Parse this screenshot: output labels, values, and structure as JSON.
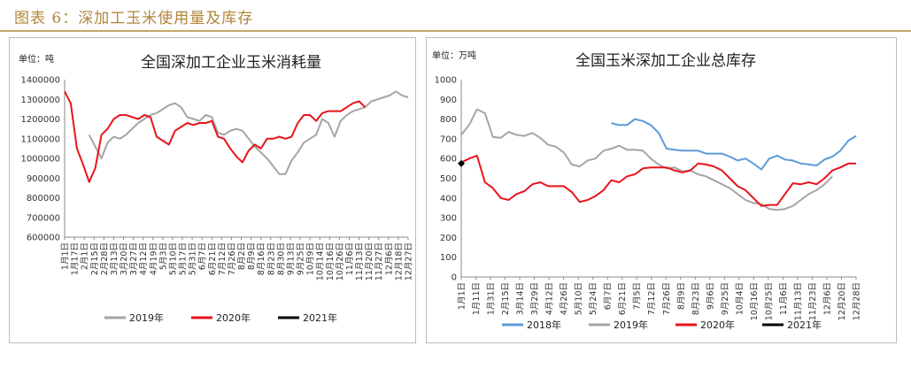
{
  "figure_title": "图表 6：深加工玉米使用量及库存",
  "colors": {
    "s2018": "#5b9bd5",
    "s2019": "#a5a5a5",
    "s2020": "#e8141b",
    "s2021": "#000000",
    "title_gold": "#b0863a"
  },
  "chart_data": [
    {
      "type": "line",
      "title": "全国深加工企业玉米消耗量",
      "unit_label": "单位：吨",
      "ylim": [
        600000,
        1400000
      ],
      "yticks": [
        "600000",
        "700000",
        "800000",
        "900000",
        "1000000",
        "1100000",
        "1200000",
        "1300000",
        "1400000"
      ],
      "xticks": [
        "1月1日",
        "1月17日",
        "2月1日",
        "2月15日",
        "2月28日",
        "3月13日",
        "3月20日",
        "3月27日",
        "4月12日",
        "4月19日",
        "5月3日",
        "5月10日",
        "5月17日",
        "5月31日",
        "6月7日",
        "6月21日",
        "7月12日",
        "7月26日",
        "8月2日",
        "8月9日",
        "8月16日",
        "8月23日",
        "8月30日",
        "9月13日",
        "9月25日",
        "10月9日",
        "10月14日",
        "10月16日",
        "10月26日",
        "11月6日",
        "11月13日",
        "11月20日",
        "11月27日",
        "12月6日",
        "12月18日",
        "12月27日"
      ],
      "legend": [
        "2019年",
        "2020年",
        "2021年"
      ],
      "series": [
        {
          "name": "2019年",
          "color_key": "s2019",
          "points": [
            [
              4,
              1120000
            ],
            [
              5,
              1060000
            ],
            [
              6,
              1000000
            ],
            [
              7,
              1080000
            ],
            [
              8,
              1110000
            ],
            [
              9,
              1100000
            ],
            [
              10,
              1120000
            ],
            [
              11,
              1150000
            ],
            [
              12,
              1180000
            ],
            [
              13,
              1200000
            ],
            [
              14,
              1220000
            ],
            [
              15,
              1230000
            ],
            [
              16,
              1250000
            ],
            [
              17,
              1270000
            ],
            [
              18,
              1280000
            ],
            [
              19,
              1260000
            ],
            [
              20,
              1210000
            ],
            [
              21,
              1200000
            ],
            [
              22,
              1190000
            ],
            [
              23,
              1220000
            ],
            [
              24,
              1210000
            ],
            [
              25,
              1130000
            ],
            [
              26,
              1120000
            ],
            [
              27,
              1140000
            ],
            [
              28,
              1150000
            ],
            [
              29,
              1140000
            ],
            [
              30,
              1100000
            ],
            [
              31,
              1060000
            ],
            [
              32,
              1030000
            ],
            [
              33,
              1000000
            ],
            [
              34,
              960000
            ],
            [
              35,
              920000
            ],
            [
              36,
              920000
            ],
            [
              37,
              990000
            ],
            [
              38,
              1030000
            ],
            [
              39,
              1080000
            ],
            [
              40,
              1100000
            ],
            [
              41,
              1120000
            ],
            [
              42,
              1200000
            ],
            [
              43,
              1180000
            ],
            [
              44,
              1110000
            ],
            [
              45,
              1190000
            ],
            [
              46,
              1220000
            ],
            [
              47,
              1240000
            ],
            [
              48,
              1250000
            ],
            [
              49,
              1260000
            ],
            [
              50,
              1290000
            ],
            [
              51,
              1300000
            ],
            [
              52,
              1310000
            ],
            [
              53,
              1320000
            ],
            [
              54,
              1340000
            ],
            [
              55,
              1320000
            ],
            [
              56,
              1310000
            ]
          ]
        },
        {
          "name": "2020年",
          "color_key": "s2020",
          "points": [
            [
              0,
              1340000
            ],
            [
              1,
              1280000
            ],
            [
              2,
              1050000
            ],
            [
              3,
              970000
            ],
            [
              4,
              880000
            ],
            [
              5,
              950000
            ],
            [
              6,
              1120000
            ],
            [
              7,
              1150000
            ],
            [
              8,
              1200000
            ],
            [
              9,
              1220000
            ],
            [
              10,
              1220000
            ],
            [
              11,
              1210000
            ],
            [
              12,
              1200000
            ],
            [
              13,
              1220000
            ],
            [
              14,
              1210000
            ],
            [
              15,
              1110000
            ],
            [
              16,
              1090000
            ],
            [
              17,
              1070000
            ],
            [
              18,
              1140000
            ],
            [
              19,
              1160000
            ],
            [
              20,
              1180000
            ],
            [
              21,
              1170000
            ],
            [
              22,
              1180000
            ],
            [
              23,
              1180000
            ],
            [
              24,
              1190000
            ],
            [
              25,
              1110000
            ],
            [
              26,
              1100000
            ],
            [
              27,
              1050000
            ],
            [
              28,
              1010000
            ],
            [
              29,
              980000
            ],
            [
              30,
              1040000
            ],
            [
              31,
              1070000
            ],
            [
              32,
              1050000
            ],
            [
              33,
              1100000
            ],
            [
              34,
              1100000
            ],
            [
              35,
              1110000
            ],
            [
              36,
              1100000
            ],
            [
              37,
              1110000
            ],
            [
              38,
              1180000
            ],
            [
              39,
              1220000
            ],
            [
              40,
              1220000
            ],
            [
              41,
              1190000
            ],
            [
              42,
              1230000
            ],
            [
              43,
              1240000
            ],
            [
              44,
              1240000
            ],
            [
              45,
              1240000
            ],
            [
              46,
              1260000
            ],
            [
              47,
              1280000
            ],
            [
              48,
              1290000
            ],
            [
              49,
              1260000
            ]
          ]
        },
        {
          "name": "2021年",
          "color_key": "s2021",
          "points": []
        }
      ]
    },
    {
      "type": "line",
      "title": "全国玉米深加工企业总库存",
      "unit_label": "单位：万吨",
      "ylim": [
        0,
        1000
      ],
      "yticks": [
        "0",
        "100",
        "200",
        "300",
        "400",
        "500",
        "600",
        "700",
        "800",
        "900",
        "1000"
      ],
      "xticks": [
        "1月1日",
        "1月11日",
        "1月31日",
        "2月15日",
        "3月14日",
        "3月29日",
        "4月12日",
        "4月26日",
        "5月10日",
        "5月24日",
        "6月7日",
        "6月21日",
        "7月5日",
        "7月12日",
        "7月26日",
        "8月9日",
        "8月23日",
        "9月6日",
        "9月25日",
        "10月4日",
        "10月16日",
        "10月25日",
        "11月6日",
        "11月13日",
        "11月23日",
        "12月6日",
        "12月20日",
        "12月28日"
      ],
      "legend": [
        "2018年",
        "2019年",
        "2020年",
        "2021年"
      ],
      "series": [
        {
          "name": "2018年",
          "color_key": "s2018",
          "points": [
            [
              19,
              780
            ],
            [
              20,
              770
            ],
            [
              21,
              770
            ],
            [
              22,
              800
            ],
            [
              23,
              790
            ],
            [
              24,
              770
            ],
            [
              25,
              730
            ],
            [
              26,
              650
            ],
            [
              27,
              645
            ],
            [
              28,
              640
            ],
            [
              29,
              640
            ],
            [
              30,
              640
            ],
            [
              31,
              625
            ],
            [
              32,
              625
            ],
            [
              33,
              625
            ],
            [
              34,
              610
            ],
            [
              35,
              590
            ],
            [
              36,
              600
            ],
            [
              37,
              575
            ],
            [
              38,
              545
            ],
            [
              39,
              600
            ],
            [
              40,
              615
            ],
            [
              41,
              595
            ],
            [
              42,
              590
            ],
            [
              43,
              575
            ],
            [
              44,
              570
            ],
            [
              45,
              565
            ],
            [
              46,
              595
            ],
            [
              47,
              610
            ],
            [
              48,
              640
            ],
            [
              49,
              690
            ],
            [
              50,
              715
            ]
          ]
        },
        {
          "name": "2019年",
          "color_key": "s2019",
          "points": [
            [
              0,
              720
            ],
            [
              1,
              770
            ],
            [
              2,
              850
            ],
            [
              3,
              830
            ],
            [
              4,
              710
            ],
            [
              5,
              705
            ],
            [
              6,
              735
            ],
            [
              7,
              720
            ],
            [
              8,
              715
            ],
            [
              9,
              730
            ],
            [
              10,
              705
            ],
            [
              11,
              670
            ],
            [
              12,
              660
            ],
            [
              13,
              630
            ],
            [
              14,
              570
            ],
            [
              15,
              560
            ],
            [
              16,
              590
            ],
            [
              17,
              600
            ],
            [
              18,
              640
            ],
            [
              19,
              650
            ],
            [
              20,
              665
            ],
            [
              21,
              645
            ],
            [
              22,
              645
            ],
            [
              23,
              640
            ],
            [
              24,
              600
            ],
            [
              25,
              570
            ],
            [
              26,
              550
            ],
            [
              27,
              555
            ],
            [
              28,
              535
            ],
            [
              29,
              540
            ],
            [
              30,
              520
            ],
            [
              31,
              510
            ],
            [
              32,
              490
            ],
            [
              33,
              470
            ],
            [
              34,
              450
            ],
            [
              35,
              420
            ],
            [
              36,
              390
            ],
            [
              37,
              375
            ],
            [
              38,
              370
            ],
            [
              39,
              345
            ],
            [
              40,
              340
            ],
            [
              41,
              345
            ],
            [
              42,
              360
            ],
            [
              43,
              390
            ],
            [
              44,
              420
            ],
            [
              45,
              440
            ],
            [
              46,
              470
            ],
            [
              47,
              510
            ]
          ]
        },
        {
          "name": "2020年",
          "color_key": "s2020",
          "points": [
            [
              0,
              580
            ],
            [
              1,
              600
            ],
            [
              2,
              615
            ],
            [
              3,
              480
            ],
            [
              4,
              450
            ],
            [
              5,
              400
            ],
            [
              6,
              390
            ],
            [
              7,
              420
            ],
            [
              8,
              435
            ],
            [
              9,
              470
            ],
            [
              10,
              480
            ],
            [
              11,
              460
            ],
            [
              12,
              460
            ],
            [
              13,
              460
            ],
            [
              14,
              430
            ],
            [
              15,
              380
            ],
            [
              16,
              390
            ],
            [
              17,
              410
            ],
            [
              18,
              440
            ],
            [
              19,
              490
            ],
            [
              20,
              480
            ],
            [
              21,
              510
            ],
            [
              22,
              520
            ],
            [
              23,
              550
            ],
            [
              24,
              555
            ],
            [
              25,
              555
            ],
            [
              26,
              555
            ],
            [
              27,
              540
            ],
            [
              28,
              530
            ],
            [
              29,
              540
            ],
            [
              30,
              575
            ],
            [
              31,
              570
            ],
            [
              32,
              560
            ],
            [
              33,
              540
            ],
            [
              34,
              500
            ],
            [
              35,
              460
            ],
            [
              36,
              440
            ],
            [
              37,
              400
            ],
            [
              38,
              360
            ],
            [
              39,
              365
            ],
            [
              40,
              365
            ],
            [
              41,
              420
            ],
            [
              42,
              475
            ],
            [
              43,
              470
            ],
            [
              44,
              480
            ],
            [
              45,
              470
            ],
            [
              46,
              500
            ],
            [
              47,
              540
            ],
            [
              48,
              555
            ],
            [
              49,
              575
            ],
            [
              50,
              575
            ]
          ]
        },
        {
          "name": "2021年",
          "color_key": "s2021",
          "points": [
            [
              0,
              575
            ]
          ]
        }
      ]
    }
  ]
}
